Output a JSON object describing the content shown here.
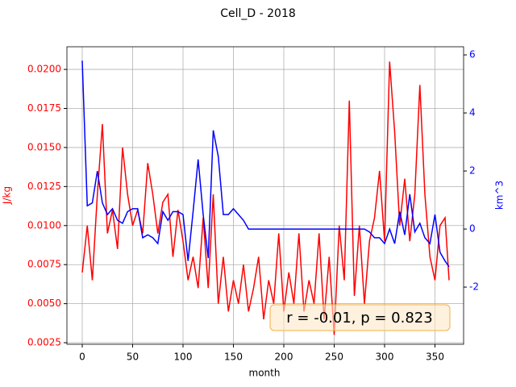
{
  "chart_data": {
    "type": "line",
    "title": "Cell_D - 2018",
    "x_label": "month",
    "y_label": "J/kg",
    "y2_label": "km^3",
    "annotation": "r = -0.01, p = 0.823",
    "x": [
      0,
      5,
      10,
      15,
      20,
      25,
      30,
      35,
      40,
      45,
      50,
      55,
      60,
      65,
      70,
      75,
      80,
      85,
      90,
      95,
      100,
      105,
      110,
      115,
      120,
      125,
      130,
      135,
      140,
      145,
      150,
      155,
      160,
      165,
      170,
      175,
      180,
      185,
      190,
      195,
      200,
      205,
      210,
      215,
      220,
      225,
      230,
      235,
      240,
      245,
      250,
      255,
      260,
      265,
      270,
      275,
      280,
      285,
      290,
      295,
      300,
      305,
      310,
      315,
      320,
      325,
      330,
      335,
      340,
      345,
      350,
      355,
      360,
      364
    ],
    "series": [
      {
        "name": "J/kg",
        "color": "#ff0000",
        "axis": "y",
        "values": [
          0.007,
          0.01,
          0.0065,
          0.012,
          0.0165,
          0.0095,
          0.011,
          0.0085,
          0.015,
          0.012,
          0.01,
          0.011,
          0.0095,
          0.014,
          0.012,
          0.0095,
          0.0115,
          0.012,
          0.008,
          0.011,
          0.009,
          0.0065,
          0.008,
          0.006,
          0.0105,
          0.006,
          0.012,
          0.005,
          0.008,
          0.0045,
          0.0065,
          0.005,
          0.0075,
          0.0045,
          0.006,
          0.008,
          0.004,
          0.0065,
          0.005,
          0.0095,
          0.0045,
          0.007,
          0.005,
          0.0095,
          0.0045,
          0.0065,
          0.005,
          0.0095,
          0.004,
          0.008,
          0.003,
          0.01,
          0.0065,
          0.018,
          0.0055,
          0.01,
          0.005,
          0.009,
          0.0105,
          0.0135,
          0.009,
          0.0205,
          0.016,
          0.01,
          0.013,
          0.009,
          0.012,
          0.019,
          0.012,
          0.008,
          0.0065,
          0.01,
          0.0105,
          0.0065
        ]
      },
      {
        "name": "km^3",
        "color": "#0000ff",
        "axis": "y2",
        "values": [
          5.8,
          0.8,
          0.9,
          2.0,
          0.9,
          0.5,
          0.7,
          0.3,
          0.2,
          0.6,
          0.7,
          0.7,
          -0.3,
          -0.2,
          -0.3,
          -0.5,
          0.6,
          0.3,
          0.6,
          0.6,
          0.5,
          -1.1,
          0.6,
          2.4,
          0.5,
          -1.0,
          3.4,
          2.5,
          0.5,
          0.5,
          0.7,
          0.5,
          0.3,
          0,
          0,
          0,
          0,
          0,
          0,
          0,
          0,
          0,
          0,
          0,
          0,
          0,
          0,
          0,
          0,
          0,
          0,
          0,
          0,
          0,
          0,
          0,
          0,
          -0.1,
          -0.3,
          -0.3,
          -0.5,
          0,
          -0.5,
          0.6,
          -0.2,
          1.2,
          -0.1,
          0.2,
          -0.3,
          -0.5,
          0.5,
          -0.8,
          -1.1,
          -1.3
        ]
      }
    ],
    "xlim": [
      -15.2,
      378.4
    ],
    "xticks": [
      0,
      50,
      100,
      150,
      200,
      250,
      300,
      350
    ],
    "ylim": [
      0.0024,
      0.02145
    ],
    "yticks": [
      0.0025,
      {
        "value": 0.005,
        "label": "0.0050"
      },
      0.0075,
      {
        "value": 0.01,
        "label": "0.0100"
      },
      0.0125,
      {
        "value": 0.015,
        "label": "0.0150"
      },
      0.0175,
      {
        "value": 0.02,
        "label": "0.0200"
      }
    ],
    "y2lim": [
      -3.97,
      6.28
    ],
    "y2ticks": [
      -2,
      0,
      2,
      4,
      6
    ],
    "grid": true
  }
}
